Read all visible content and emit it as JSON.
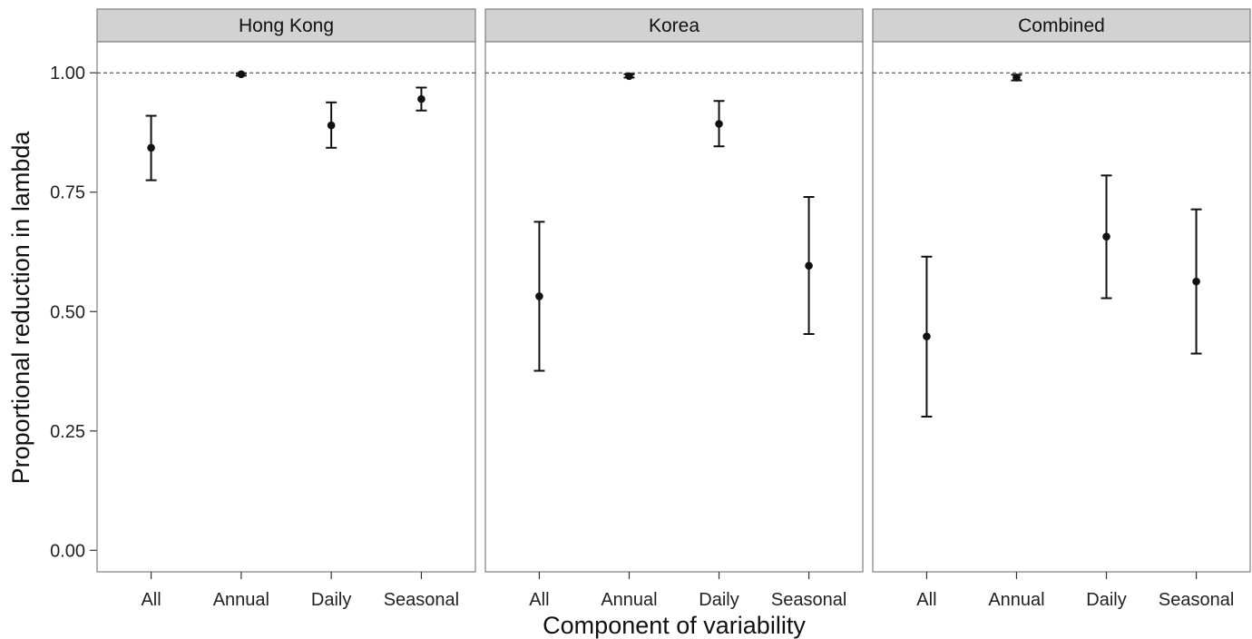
{
  "chart_data": {
    "type": "errorbar",
    "xlabel": "Component of variability",
    "ylabel": "Proportional reduction in lambda",
    "ylim": [
      -0.045,
      1.065
    ],
    "yticks": [
      "0.00",
      "0.25",
      "0.50",
      "0.75",
      "1.00"
    ],
    "ytick_values": [
      0,
      0.25,
      0.5,
      0.75,
      1.0
    ],
    "categories": [
      "All",
      "Annual",
      "Daily",
      "Seasonal"
    ],
    "reference_line": 1.0,
    "grid": false,
    "panels": [
      {
        "name": "Hong Kong",
        "points": [
          {
            "category": "All",
            "value": 0.843,
            "lower": 0.775,
            "upper": 0.91
          },
          {
            "category": "Annual",
            "value": 0.997,
            "lower": 0.994,
            "upper": 0.999
          },
          {
            "category": "Daily",
            "value": 0.89,
            "lower": 0.843,
            "upper": 0.938
          },
          {
            "category": "Seasonal",
            "value": 0.945,
            "lower": 0.921,
            "upper": 0.969
          }
        ]
      },
      {
        "name": "Korea",
        "points": [
          {
            "category": "All",
            "value": 0.532,
            "lower": 0.376,
            "upper": 0.688
          },
          {
            "category": "Annual",
            "value": 0.993,
            "lower": 0.99,
            "upper": 0.997
          },
          {
            "category": "Daily",
            "value": 0.893,
            "lower": 0.846,
            "upper": 0.941
          },
          {
            "category": "Seasonal",
            "value": 0.596,
            "lower": 0.453,
            "upper": 0.74
          }
        ]
      },
      {
        "name": "Combined",
        "points": [
          {
            "category": "All",
            "value": 0.448,
            "lower": 0.28,
            "upper": 0.615
          },
          {
            "category": "Annual",
            "value": 0.99,
            "lower": 0.984,
            "upper": 0.996
          },
          {
            "category": "Daily",
            "value": 0.657,
            "lower": 0.528,
            "upper": 0.785
          },
          {
            "category": "Seasonal",
            "value": 0.563,
            "lower": 0.412,
            "upper": 0.714
          }
        ]
      }
    ]
  }
}
